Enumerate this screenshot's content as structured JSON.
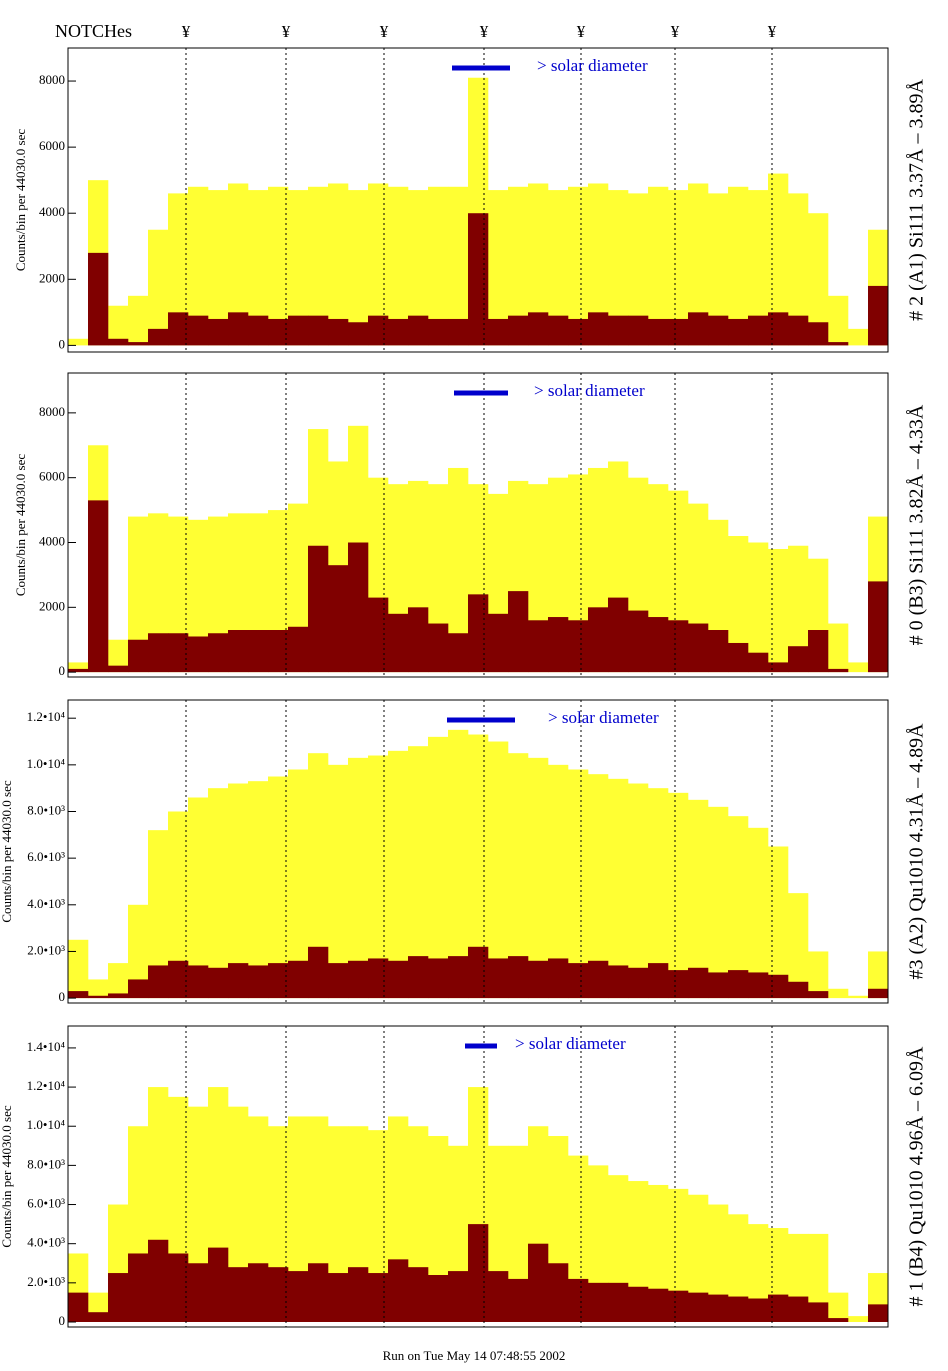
{
  "header": {
    "label": "NOTCHes",
    "markers": [
      "¥",
      "¥",
      "¥",
      "¥",
      "¥",
      "¥",
      "¥"
    ]
  },
  "footer": "Run on Tue May 14 07:48:55 2002",
  "chart_data": [
    {
      "type": "histogram",
      "ylabel": "Counts/bin per  44030.0 sec",
      "side_label": "# 2 (A1) Si111  3.37Å – 3.89Å",
      "annotation": "> solar diameter",
      "ylim": [
        -200,
        9000
      ],
      "yticks": [
        0,
        2000,
        4000,
        6000,
        8000
      ],
      "series": [
        {
          "color": "#ffff33",
          "values": [
            200,
            5000,
            1200,
            1500,
            3500,
            4600,
            4800,
            4700,
            4900,
            4700,
            4800,
            4700,
            4800,
            4900,
            4700,
            4900,
            4800,
            4700,
            4800,
            4800,
            8100,
            4700,
            4800,
            4900,
            4700,
            4800,
            4900,
            4700,
            4600,
            4800,
            4700,
            4900,
            4600,
            4800,
            4700,
            5200,
            4600,
            4000,
            1500,
            500,
            3500
          ]
        },
        {
          "color": "#800000",
          "values": [
            0,
            2800,
            200,
            100,
            500,
            1000,
            900,
            800,
            1000,
            900,
            800,
            900,
            900,
            800,
            700,
            900,
            800,
            900,
            800,
            800,
            4000,
            800,
            900,
            1000,
            900,
            800,
            1000,
            900,
            900,
            800,
            800,
            1000,
            900,
            800,
            900,
            1000,
            900,
            700,
            100,
            0,
            1800
          ]
        }
      ]
    },
    {
      "type": "histogram",
      "ylabel": "Counts/bin per  44030.0 sec",
      "side_label": "# 0 (B3) Si111  3.82Å – 4.33Å",
      "annotation": "> solar diameter",
      "ylim": [
        -150,
        9230
      ],
      "yticks": [
        0,
        2000,
        4000,
        6000,
        8000
      ],
      "series": [
        {
          "color": "#ffff33",
          "values": [
            300,
            7000,
            1000,
            4800,
            4900,
            4800,
            4700,
            4800,
            4900,
            4900,
            5000,
            5200,
            7500,
            6500,
            7600,
            6000,
            5800,
            5900,
            5800,
            6300,
            5800,
            5500,
            5900,
            5800,
            6000,
            6100,
            6300,
            6500,
            6000,
            5800,
            5600,
            5200,
            4700,
            4200,
            4000,
            3800,
            3900,
            3500,
            1500,
            300,
            4800
          ]
        },
        {
          "color": "#800000",
          "values": [
            100,
            5300,
            200,
            1000,
            1200,
            1200,
            1100,
            1200,
            1300,
            1300,
            1300,
            1400,
            3900,
            3300,
            4000,
            2300,
            1800,
            2000,
            1500,
            1200,
            2400,
            1800,
            2500,
            1600,
            1700,
            1600,
            2000,
            2300,
            1900,
            1700,
            1600,
            1500,
            1300,
            900,
            600,
            300,
            800,
            1300,
            100,
            0,
            2800
          ]
        }
      ]
    },
    {
      "type": "histogram",
      "ylabel": "Counts/bin per  44030.0 sec",
      "side_label": "#3 (A2) Qu1010  4.31Å – 4.89Å",
      "annotation": "> solar diameter",
      "ylim": [
        -210,
        12780
      ],
      "yticks": [
        0,
        {
          "value": 2000,
          "label": "2.0•10³"
        },
        {
          "value": 4000,
          "label": "4.0•10³"
        },
        {
          "value": 6000,
          "label": "6.0•10³"
        },
        {
          "value": 8000,
          "label": "8.0•10³"
        },
        {
          "value": 10000,
          "label": "1.0•10⁴"
        },
        {
          "value": 12000,
          "label": "1.2•10⁴"
        }
      ],
      "series": [
        {
          "color": "#ffff33",
          "values": [
            2500,
            800,
            1500,
            4000,
            7200,
            8000,
            8600,
            9000,
            9200,
            9300,
            9500,
            9800,
            10500,
            10000,
            10300,
            10400,
            10600,
            10800,
            11200,
            11500,
            11300,
            11000,
            10500,
            10300,
            10000,
            9800,
            9600,
            9400,
            9200,
            9000,
            8800,
            8500,
            8200,
            7800,
            7300,
            6500,
            4500,
            2000,
            400,
            100,
            2000
          ]
        },
        {
          "color": "#800000",
          "values": [
            300,
            100,
            200,
            800,
            1400,
            1600,
            1400,
            1300,
            1500,
            1400,
            1500,
            1600,
            2200,
            1500,
            1600,
            1700,
            1600,
            1800,
            1700,
            1800,
            2200,
            1700,
            1800,
            1600,
            1700,
            1500,
            1600,
            1400,
            1300,
            1500,
            1200,
            1300,
            1100,
            1200,
            1100,
            1000,
            700,
            300,
            0,
            0,
            400
          ]
        }
      ]
    },
    {
      "type": "histogram",
      "ylabel": "Counts/bin per  44030.0 sec",
      "side_label": "# 1 (B4) Qu1010 4.96Å – 6.09Å",
      "annotation": "> solar diameter",
      "ylim": [
        -256,
        15120
      ],
      "yticks": [
        0,
        {
          "value": 2000,
          "label": "2.0•10³"
        },
        {
          "value": 4000,
          "label": "4.0•10³"
        },
        {
          "value": 6000,
          "label": "6.0•10³"
        },
        {
          "value": 8000,
          "label": "8.0•10³"
        },
        {
          "value": 10000,
          "label": "1.0•10⁴"
        },
        {
          "value": 12000,
          "label": "1.2•10⁴"
        },
        {
          "value": 14000,
          "label": "1.4•10⁴"
        }
      ],
      "series": [
        {
          "color": "#ffff33",
          "values": [
            3500,
            1500,
            6000,
            10000,
            12000,
            11500,
            11000,
            12000,
            11000,
            10500,
            10000,
            10500,
            10500,
            10000,
            10000,
            9800,
            10500,
            10000,
            9500,
            9000,
            12000,
            9000,
            9000,
            10000,
            9500,
            8500,
            8000,
            7500,
            7200,
            7000,
            6800,
            6500,
            6000,
            5500,
            5000,
            4800,
            4500,
            4500,
            1500,
            300,
            2500
          ]
        },
        {
          "color": "#800000",
          "values": [
            1500,
            500,
            2500,
            3500,
            4200,
            3500,
            3000,
            3800,
            2800,
            3000,
            2800,
            2600,
            3000,
            2500,
            2800,
            2500,
            3200,
            2800,
            2400,
            2600,
            5000,
            2600,
            2200,
            4000,
            3000,
            2200,
            2000,
            2000,
            1800,
            1700,
            1600,
            1500,
            1400,
            1300,
            1200,
            1400,
            1300,
            1000,
            200,
            0,
            900
          ]
        }
      ]
    }
  ]
}
